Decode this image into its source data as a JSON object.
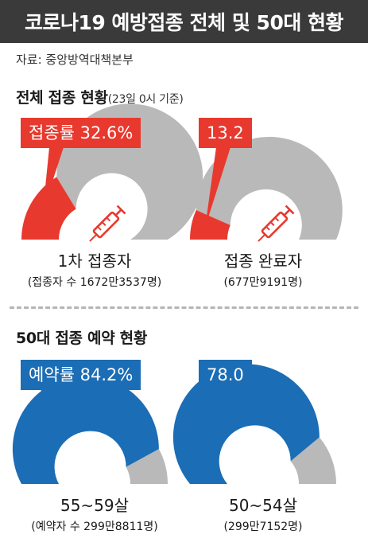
{
  "header": {
    "title": "코로나19 예방접종 전체 및 50대 현황",
    "source": "자료: 중앙방역대책본부"
  },
  "section1": {
    "title": "전체 접종 현황",
    "note": "(23일 0시 기준)"
  },
  "section2": {
    "title": "50대 접종 예약 현황"
  },
  "colors": {
    "red": "#e8392e",
    "blue": "#1b6db5",
    "gray": "#b9b9b9"
  },
  "chart_data": [
    {
      "type": "gauge",
      "callout": "접종률 32.6%",
      "value": 32.6,
      "label": "1차 접종자",
      "sublabel": "(접종자 수 1672만3537명)",
      "color": "#e8392e",
      "icon": "syringe-icon"
    },
    {
      "type": "gauge",
      "callout": "13.2",
      "value": 13.2,
      "label": "접종 완료자",
      "sublabel": "(677만9191명)",
      "color": "#e8392e",
      "icon": "syringe-icon"
    },
    {
      "type": "gauge",
      "callout": "예약률 84.2%",
      "value": 84.2,
      "label": "55~59살",
      "sublabel": "(예약자 수 299만8811명)",
      "color": "#1b6db5"
    },
    {
      "type": "gauge",
      "callout": "78.0",
      "value": 78.0,
      "label": "50~54살",
      "sublabel": "(299만7152명)",
      "color": "#1b6db5"
    }
  ]
}
